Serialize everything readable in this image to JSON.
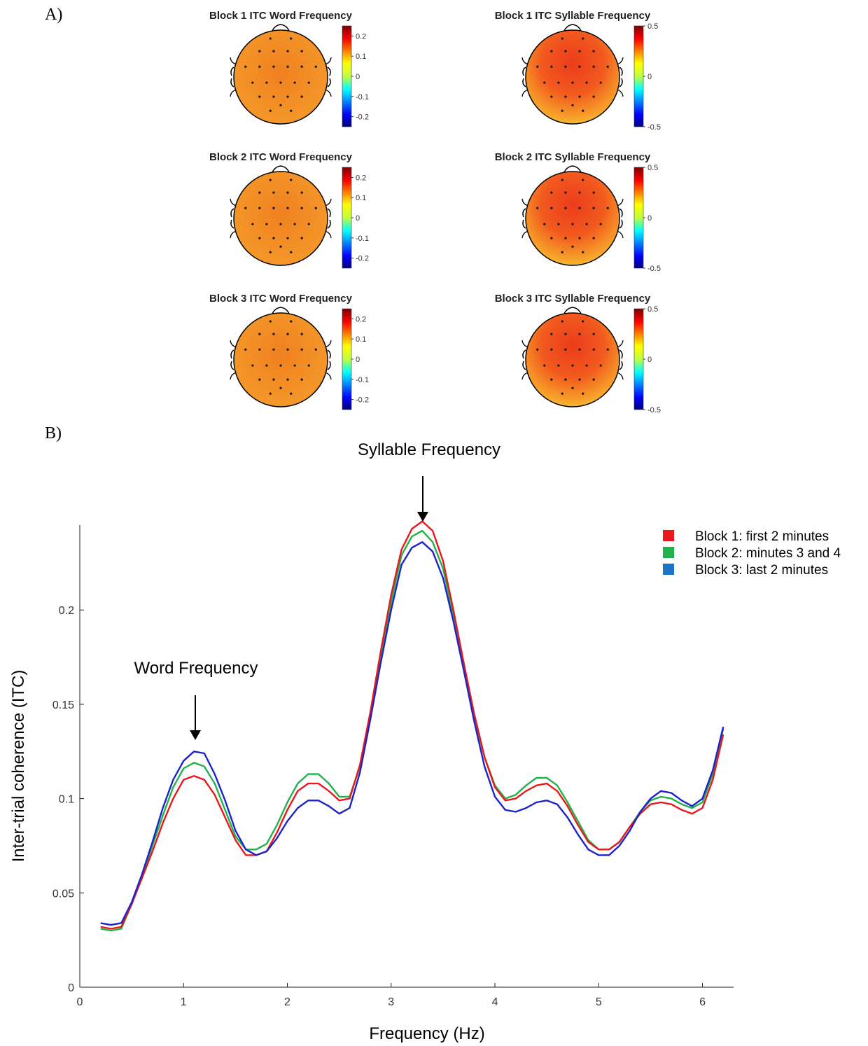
{
  "panels": {
    "a_label": "A)",
    "b_label": "B)"
  },
  "colors": {
    "block1": "#e8191c",
    "block2": "#21b24b",
    "block3": "#1d22c9",
    "legend_block3": "#1a75c9"
  },
  "chart_data": [
    {
      "type": "heatmap",
      "title": "Block 1 ITC Word Frequency",
      "colorbar_ticks": [
        "0.2",
        "0.1",
        "0",
        "-0.1",
        "-0.2"
      ],
      "clim": [
        -0.25,
        0.25
      ],
      "approx_value": 0.15
    },
    {
      "type": "heatmap",
      "title": "Block 1 ITC Syllable Frequency",
      "colorbar_ticks": [
        "0.5",
        "0",
        "-0.5"
      ],
      "clim": [
        -0.5,
        0.5
      ],
      "approx_value": 0.35
    },
    {
      "type": "heatmap",
      "title": "Block 2 ITC Word Frequency",
      "colorbar_ticks": [
        "0.2",
        "0.1",
        "0",
        "-0.1",
        "-0.2"
      ],
      "clim": [
        -0.25,
        0.25
      ],
      "approx_value": 0.15
    },
    {
      "type": "heatmap",
      "title": "Block 2 ITC Syllable Frequency",
      "colorbar_ticks": [
        "0.5",
        "0",
        "-0.5"
      ],
      "clim": [
        -0.5,
        0.5
      ],
      "approx_value": 0.3
    },
    {
      "type": "heatmap",
      "title": "Block 3 ITC Word Frequency",
      "colorbar_ticks": [
        "0.2",
        "0.1",
        "0",
        "-0.1",
        "-0.2"
      ],
      "clim": [
        -0.25,
        0.25
      ],
      "approx_value": 0.15
    },
    {
      "type": "heatmap",
      "title": "Block 3 ITC Syllable Frequency",
      "colorbar_ticks": [
        "0.5",
        "0",
        "-0.5"
      ],
      "clim": [
        -0.5,
        0.5
      ],
      "approx_value": 0.32
    },
    {
      "type": "line",
      "title": "",
      "xlabel": "Frequency (Hz)",
      "ylabel": "Inter-trial coherence (ITC)",
      "xlim": [
        0,
        6.3
      ],
      "ylim": [
        0,
        0.245
      ],
      "xticks": [
        0,
        1,
        2,
        3,
        4,
        5,
        6
      ],
      "yticks": [
        0,
        0.05,
        0.1,
        0.15,
        0.2
      ],
      "grid": false,
      "legend": "top-right",
      "annotations": [
        "Syllable Frequency",
        "Word Frequency"
      ],
      "x": [
        0.2,
        0.3,
        0.4,
        0.5,
        0.6,
        0.7,
        0.8,
        0.9,
        1.0,
        1.1,
        1.2,
        1.3,
        1.4,
        1.5,
        1.6,
        1.7,
        1.8,
        1.9,
        2.0,
        2.1,
        2.2,
        2.3,
        2.4,
        2.5,
        2.6,
        2.7,
        2.8,
        2.9,
        3.0,
        3.1,
        3.2,
        3.3,
        3.4,
        3.5,
        3.6,
        3.7,
        3.8,
        3.9,
        4.0,
        4.1,
        4.2,
        4.3,
        4.4,
        4.5,
        4.6,
        4.7,
        4.8,
        4.9,
        5.0,
        5.1,
        5.2,
        5.3,
        5.4,
        5.5,
        5.6,
        5.7,
        5.8,
        5.9,
        6.0,
        6.1,
        6.2
      ],
      "series": [
        {
          "name": "Block 1: first 2 minutes",
          "values": [
            0.032,
            0.031,
            0.032,
            0.044,
            0.058,
            0.072,
            0.087,
            0.1,
            0.11,
            0.112,
            0.11,
            0.102,
            0.09,
            0.078,
            0.07,
            0.07,
            0.072,
            0.082,
            0.094,
            0.104,
            0.108,
            0.108,
            0.104,
            0.099,
            0.1,
            0.118,
            0.146,
            0.178,
            0.208,
            0.232,
            0.243,
            0.247,
            0.242,
            0.226,
            0.2,
            0.172,
            0.145,
            0.122,
            0.106,
            0.099,
            0.1,
            0.104,
            0.107,
            0.108,
            0.104,
            0.096,
            0.086,
            0.077,
            0.073,
            0.073,
            0.077,
            0.085,
            0.092,
            0.097,
            0.098,
            0.097,
            0.094,
            0.092,
            0.095,
            0.11,
            0.134
          ]
        },
        {
          "name": "Block 2: minutes 3 and 4",
          "values": [
            0.031,
            0.03,
            0.031,
            0.044,
            0.059,
            0.075,
            0.091,
            0.106,
            0.116,
            0.119,
            0.117,
            0.108,
            0.094,
            0.08,
            0.073,
            0.073,
            0.076,
            0.086,
            0.098,
            0.108,
            0.113,
            0.113,
            0.108,
            0.101,
            0.101,
            0.117,
            0.144,
            0.174,
            0.204,
            0.229,
            0.239,
            0.242,
            0.236,
            0.222,
            0.197,
            0.17,
            0.144,
            0.122,
            0.107,
            0.1,
            0.102,
            0.107,
            0.111,
            0.111,
            0.107,
            0.098,
            0.088,
            0.078,
            0.073,
            0.073,
            0.077,
            0.085,
            0.093,
            0.099,
            0.101,
            0.1,
            0.097,
            0.095,
            0.098,
            0.113,
            0.137
          ]
        },
        {
          "name": "Block 3: last 2 minutes",
          "values": [
            0.034,
            0.033,
            0.034,
            0.045,
            0.06,
            0.077,
            0.095,
            0.11,
            0.12,
            0.125,
            0.124,
            0.113,
            0.099,
            0.083,
            0.073,
            0.07,
            0.072,
            0.079,
            0.088,
            0.095,
            0.099,
            0.099,
            0.096,
            0.092,
            0.095,
            0.114,
            0.142,
            0.172,
            0.2,
            0.224,
            0.233,
            0.236,
            0.231,
            0.217,
            0.194,
            0.168,
            0.141,
            0.117,
            0.101,
            0.094,
            0.093,
            0.095,
            0.098,
            0.099,
            0.097,
            0.09,
            0.081,
            0.073,
            0.07,
            0.07,
            0.075,
            0.083,
            0.093,
            0.1,
            0.104,
            0.103,
            0.099,
            0.096,
            0.1,
            0.115,
            0.138
          ]
        }
      ]
    }
  ]
}
